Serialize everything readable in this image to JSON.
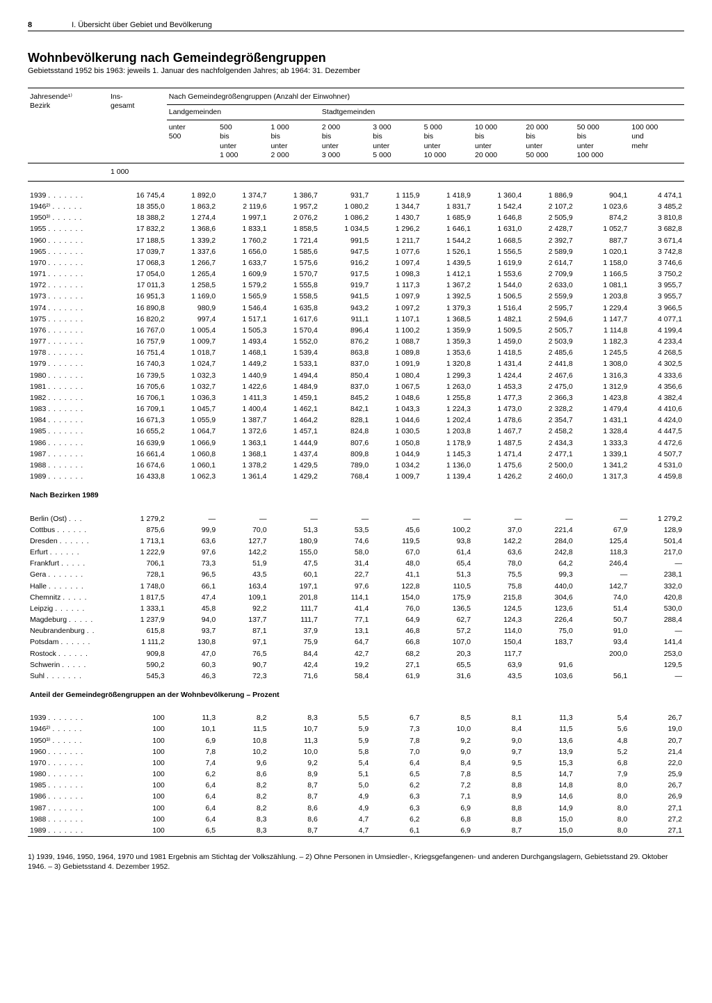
{
  "page": {
    "number": "8",
    "section": "I. Übersicht über Gebiet und Bevölkerung"
  },
  "title": "Wohnbevölkerung nach Gemeindegrößengruppen",
  "subtitle": "Gebietsstand 1952 bis 1963: jeweils 1. Januar des nachfolgenden Jahres; ab 1964: 31. Dezember",
  "headers": {
    "col0a": "Jahresende¹⁾",
    "col0b": "Bezirk",
    "col1a": "Ins-",
    "col1b": "gesamt",
    "group": "Nach Gemeindegrößengruppen (Anzahl der Einwohner)",
    "land": "Landgemeinden",
    "stadt": "Stadtgemeinden",
    "c2": "unter\n500",
    "c3": "500\nbis\nunter\n1 000",
    "c4": "1 000\nbis\nunter\n2 000",
    "c5": "2 000\nbis\nunter\n3 000",
    "c6": "3 000\nbis\nunter\n5 000",
    "c7": "5 000\nbis\nunter\n10 000",
    "c8": "10 000\nbis\nunter\n20 000",
    "c9": "20 000\nbis\nunter\n50 000",
    "c10": "50 000\nbis\nunter\n100 000",
    "c11": "100 000\nund\nmehr",
    "unit": "1 000"
  },
  "years": [
    {
      "y": "1939",
      "v": [
        "16 745,4",
        "1 892,0",
        "1 374,7",
        "1 386,7",
        "931,7",
        "1 115,9",
        "1 418,9",
        "1 360,4",
        "1 886,9",
        "904,1",
        "4 474,1"
      ]
    },
    {
      "y": "1946²⁾",
      "v": [
        "18 355,0",
        "1 863,2",
        "2 119,6",
        "1 957,2",
        "1 080,2",
        "1 344,7",
        "1 831,7",
        "1 542,4",
        "2 107,2",
        "1 023,6",
        "3 485,2"
      ]
    },
    {
      "y": "1950³⁾",
      "v": [
        "18 388,2",
        "1 274,4",
        "1 997,1",
        "2 076,2",
        "1 086,2",
        "1 430,7",
        "1 685,9",
        "1 646,8",
        "2 505,9",
        "874,2",
        "3 810,8"
      ]
    },
    {
      "y": "1955",
      "v": [
        "17 832,2",
        "1 368,6",
        "1 833,1",
        "1 858,5",
        "1 034,5",
        "1 296,2",
        "1 646,1",
        "1 631,0",
        "2 428,7",
        "1 052,7",
        "3 682,8"
      ]
    },
    {
      "y": "1960",
      "v": [
        "17 188,5",
        "1 339,2",
        "1 760,2",
        "1 721,4",
        "991,5",
        "1 211,7",
        "1 544,2",
        "1 668,5",
        "2 392,7",
        "887,7",
        "3 671,4"
      ]
    },
    {
      "y": "1965",
      "v": [
        "17 039,7",
        "1 337,6",
        "1 656,0",
        "1 585,6",
        "947,5",
        "1 077,6",
        "1 526,1",
        "1 556,5",
        "2 589,9",
        "1 020,1",
        "3 742,8"
      ]
    },
    {
      "y": "1970",
      "v": [
        "17 068,3",
        "1 266,7",
        "1 633,7",
        "1 575,6",
        "916,2",
        "1 097,4",
        "1 439,5",
        "1 619,9",
        "2 614,7",
        "1 158,0",
        "3 746,6"
      ]
    },
    {
      "y": "1971",
      "v": [
        "17 054,0",
        "1 265,4",
        "1 609,9",
        "1 570,7",
        "917,5",
        "1 098,3",
        "1 412,1",
        "1 553,6",
        "2 709,9",
        "1 166,5",
        "3 750,2"
      ]
    },
    {
      "y": "1972",
      "v": [
        "17 011,3",
        "1 258,5",
        "1 579,2",
        "1 555,8",
        "919,7",
        "1 117,3",
        "1 367,2",
        "1 544,0",
        "2 633,0",
        "1 081,1",
        "3 955,7"
      ]
    },
    {
      "y": "1973",
      "v": [
        "16 951,3",
        "1 169,0",
        "1 565,9",
        "1 558,5",
        "941,5",
        "1 097,9",
        "1 392,5",
        "1 506,5",
        "2 559,9",
        "1 203,8",
        "3 955,7"
      ]
    },
    {
      "y": "1974",
      "v": [
        "16 890,8",
        "980,9",
        "1 546,4",
        "1 635,8",
        "943,2",
        "1 097,2",
        "1 379,3",
        "1 516,4",
        "2 595,7",
        "1 229,4",
        "3 966,5"
      ]
    },
    {
      "y": "1975",
      "v": [
        "16 820,2",
        "997,4",
        "1 517,1",
        "1 617,6",
        "911,1",
        "1 107,1",
        "1 368,5",
        "1 482,1",
        "2 594,6",
        "1 147,7",
        "4 077,1"
      ]
    },
    {
      "y": "1976",
      "v": [
        "16 767,0",
        "1 005,4",
        "1 505,3",
        "1 570,4",
        "896,4",
        "1 100,2",
        "1 359,9",
        "1 509,5",
        "2 505,7",
        "1 114,8",
        "4 199,4"
      ]
    },
    {
      "y": "1977",
      "v": [
        "16 757,9",
        "1 009,7",
        "1 493,4",
        "1 552,0",
        "876,2",
        "1 088,7",
        "1 359,3",
        "1 459,0",
        "2 503,9",
        "1 182,3",
        "4 233,4"
      ]
    },
    {
      "y": "1978",
      "v": [
        "16 751,4",
        "1 018,7",
        "1 468,1",
        "1 539,4",
        "863,8",
        "1 089,8",
        "1 353,6",
        "1 418,5",
        "2 485,6",
        "1 245,5",
        "4 268,5"
      ]
    },
    {
      "y": "1979",
      "v": [
        "16 740,3",
        "1 024,7",
        "1 449,2",
        "1 533,1",
        "837,0",
        "1 091,9",
        "1 320,8",
        "1 431,4",
        "2 441,8",
        "1 308,0",
        "4 302,5"
      ]
    },
    {
      "y": "1980",
      "v": [
        "16 739,5",
        "1 032,3",
        "1 440,9",
        "1 494,4",
        "850,4",
        "1 080,4",
        "1 299,3",
        "1 424,4",
        "2 467,6",
        "1 316,3",
        "4 333,6"
      ]
    },
    {
      "y": "1981",
      "v": [
        "16 705,6",
        "1 032,7",
        "1 422,6",
        "1 484,9",
        "837,0",
        "1 067,5",
        "1 263,0",
        "1 453,3",
        "2 475,0",
        "1 312,9",
        "4 356,6"
      ]
    },
    {
      "y": "1982",
      "v": [
        "16 706,1",
        "1 036,3",
        "1 411,3",
        "1 459,1",
        "845,2",
        "1 048,6",
        "1 255,8",
        "1 477,3",
        "2 366,3",
        "1 423,8",
        "4 382,4"
      ]
    },
    {
      "y": "1983",
      "v": [
        "16 709,1",
        "1 045,7",
        "1 400,4",
        "1 462,1",
        "842,1",
        "1 043,3",
        "1 224,3",
        "1 473,0",
        "2 328,2",
        "1 479,4",
        "4 410,6"
      ]
    },
    {
      "y": "1984",
      "v": [
        "16 671,3",
        "1 055,9",
        "1 387,7",
        "1 464,2",
        "828,1",
        "1 044,6",
        "1 202,4",
        "1 478,6",
        "2 354,7",
        "1 431,1",
        "4 424,0"
      ]
    },
    {
      "y": "1985",
      "v": [
        "16 655,2",
        "1 064,7",
        "1 372,6",
        "1 457,1",
        "824,8",
        "1 030,5",
        "1 203,8",
        "1 467,7",
        "2 458,2",
        "1 328,4",
        "4 447,5"
      ]
    },
    {
      "y": "1986",
      "v": [
        "16 639,9",
        "1 066,9",
        "1 363,1",
        "1 444,9",
        "807,6",
        "1 050,8",
        "1 178,9",
        "1 487,5",
        "2 434,3",
        "1 333,3",
        "4 472,6"
      ]
    },
    {
      "y": "1987",
      "v": [
        "16 661,4",
        "1 060,8",
        "1 368,1",
        "1 437,4",
        "809,8",
        "1 044,9",
        "1 145,3",
        "1 471,4",
        "2 477,1",
        "1 339,1",
        "4 507,7"
      ]
    },
    {
      "y": "1988",
      "v": [
        "16 674,6",
        "1 060,1",
        "1 378,2",
        "1 429,5",
        "789,0",
        "1 034,2",
        "1 136,0",
        "1 475,6",
        "2 500,0",
        "1 341,2",
        "4 531,0"
      ]
    },
    {
      "y": "1989",
      "v": [
        "16 433,8",
        "1 062,3",
        "1 361,4",
        "1 429,2",
        "768,4",
        "1 009,7",
        "1 139,4",
        "1 426,2",
        "2 460,0",
        "1 317,3",
        "4 459,8"
      ]
    }
  ],
  "bezirkeTitle": "Nach Bezirken 1989",
  "bezirke": [
    {
      "y": "Berlin (Ost)",
      "v": [
        "1 279,2",
        "—",
        "—",
        "—",
        "—",
        "—",
        "—",
        "—",
        "—",
        "—",
        "1 279,2"
      ]
    },
    {
      "y": "Cottbus",
      "v": [
        "875,6",
        "99,9",
        "70,0",
        "51,3",
        "53,5",
        "45,6",
        "100,2",
        "37,0",
        "221,4",
        "67,9",
        "128,9"
      ]
    },
    {
      "y": "Dresden",
      "v": [
        "1 713,1",
        "63,6",
        "127,7",
        "180,9",
        "74,6",
        "119,5",
        "93,8",
        "142,2",
        "284,0",
        "125,4",
        "501,4"
      ]
    },
    {
      "y": "Erfurt",
      "v": [
        "1 222,9",
        "97,6",
        "142,2",
        "155,0",
        "58,0",
        "67,0",
        "61,4",
        "63,6",
        "242,8",
        "118,3",
        "217,0"
      ]
    },
    {
      "y": "Frankfurt",
      "v": [
        "706,1",
        "73,3",
        "51,9",
        "47,5",
        "31,4",
        "48,0",
        "65,4",
        "78,0",
        "64,2",
        "246,4",
        "—"
      ]
    },
    {
      "y": "Gera",
      "v": [
        "728,1",
        "96,5",
        "43,5",
        "60,1",
        "22,7",
        "41,1",
        "51,3",
        "75,5",
        "99,3",
        "—",
        "238,1"
      ]
    },
    {
      "y": "Halle",
      "v": [
        "1 748,0",
        "66,1",
        "163,4",
        "197,1",
        "97,6",
        "122,8",
        "110,5",
        "75,8",
        "440,0",
        "142,7",
        "332,0"
      ]
    },
    {
      "y": "Chemnitz",
      "v": [
        "1 817,5",
        "47,4",
        "109,1",
        "201,8",
        "114,1",
        "154,0",
        "175,9",
        "215,8",
        "304,6",
        "74,0",
        "420,8"
      ]
    },
    {
      "y": "Leipzig",
      "v": [
        "1 333,1",
        "45,8",
        "92,2",
        "111,7",
        "41,4",
        "76,0",
        "136,5",
        "124,5",
        "123,6",
        "51,4",
        "530,0"
      ]
    },
    {
      "y": "Magdeburg",
      "v": [
        "1 237,9",
        "94,0",
        "137,7",
        "111,7",
        "77,1",
        "64,9",
        "62,7",
        "124,3",
        "226,4",
        "50,7",
        "288,4"
      ]
    },
    {
      "y": "Neubrandenburg",
      "v": [
        "615,8",
        "93,7",
        "87,1",
        "37,9",
        "13,1",
        "46,8",
        "57,2",
        "114,0",
        "75,0",
        "91,0",
        "—"
      ]
    },
    {
      "y": "Potsdam",
      "v": [
        "1 111,2",
        "130,8",
        "97,1",
        "75,9",
        "64,7",
        "66,8",
        "107,0",
        "150,4",
        "183,7",
        "93,4",
        "141,4"
      ]
    },
    {
      "y": "Rostock",
      "v": [
        "909,8",
        "47,0",
        "76,5",
        "84,4",
        "42,7",
        "68,2",
        "20,3",
        "117,7",
        "",
        "200,0",
        "253,0"
      ]
    },
    {
      "y": "Schwerin",
      "v": [
        "590,2",
        "60,3",
        "90,7",
        "42,4",
        "19,2",
        "27,1",
        "65,5",
        "63,9",
        "91,6",
        "",
        "129,5"
      ]
    },
    {
      "y": "Suhl",
      "v": [
        "545,3",
        "46,3",
        "72,3",
        "71,6",
        "58,4",
        "61,9",
        "31,6",
        "43,5",
        "103,6",
        "56,1",
        "—"
      ]
    }
  ],
  "anteilTitle": "Anteil der Gemeindegrößengruppen an der Wohnbevölkerung – Prozent",
  "anteil": [
    {
      "y": "1939",
      "v": [
        "100",
        "11,3",
        "8,2",
        "8,3",
        "5,5",
        "6,7",
        "8,5",
        "8,1",
        "11,3",
        "5,4",
        "26,7"
      ]
    },
    {
      "y": "1946²⁾",
      "v": [
        "100",
        "10,1",
        "11,5",
        "10,7",
        "5,9",
        "7,3",
        "10,0",
        "8,4",
        "11,5",
        "5,6",
        "19,0"
      ]
    },
    {
      "y": "1950³⁾",
      "v": [
        "100",
        "6,9",
        "10,8",
        "11,3",
        "5,9",
        "7,8",
        "9,2",
        "9,0",
        "13,6",
        "4,8",
        "20,7"
      ]
    },
    {
      "y": "1960",
      "v": [
        "100",
        "7,8",
        "10,2",
        "10,0",
        "5,8",
        "7,0",
        "9,0",
        "9,7",
        "13,9",
        "5,2",
        "21,4"
      ]
    },
    {
      "y": "1970",
      "v": [
        "100",
        "7,4",
        "9,6",
        "9,2",
        "5,4",
        "6,4",
        "8,4",
        "9,5",
        "15,3",
        "6,8",
        "22,0"
      ]
    },
    {
      "y": "1980",
      "v": [
        "100",
        "6,2",
        "8,6",
        "8,9",
        "5,1",
        "6,5",
        "7,8",
        "8,5",
        "14,7",
        "7,9",
        "25,9"
      ]
    },
    {
      "y": "1985",
      "v": [
        "100",
        "6,4",
        "8,2",
        "8,7",
        "5,0",
        "6,2",
        "7,2",
        "8,8",
        "14,8",
        "8,0",
        "26,7"
      ]
    },
    {
      "y": "1986",
      "v": [
        "100",
        "6,4",
        "8,2",
        "8,7",
        "4,9",
        "6,3",
        "7,1",
        "8,9",
        "14,6",
        "8,0",
        "26,9"
      ]
    },
    {
      "y": "1987",
      "v": [
        "100",
        "6,4",
        "8,2",
        "8,6",
        "4,9",
        "6,3",
        "6,9",
        "8,8",
        "14,9",
        "8,0",
        "27,1"
      ]
    },
    {
      "y": "1988",
      "v": [
        "100",
        "6,4",
        "8,3",
        "8,6",
        "4,7",
        "6,2",
        "6,8",
        "8,8",
        "15,0",
        "8,0",
        "27,2"
      ]
    },
    {
      "y": "1989",
      "v": [
        "100",
        "6,5",
        "8,3",
        "8,7",
        "4,7",
        "6,1",
        "6,9",
        "8,7",
        "15,0",
        "8,0",
        "27,1"
      ]
    }
  ],
  "footnotes": "1) 1939, 1946, 1950, 1964, 1970 und 1981 Ergebnis am Stichtag der Volkszählung. – 2) Ohne Personen in Umsiedler-, Kriegsgefangenen- und anderen Durchgangslagern, Gebietsstand 29. Oktober 1946. – 3) Gebietsstand 4. Dezember 1952."
}
